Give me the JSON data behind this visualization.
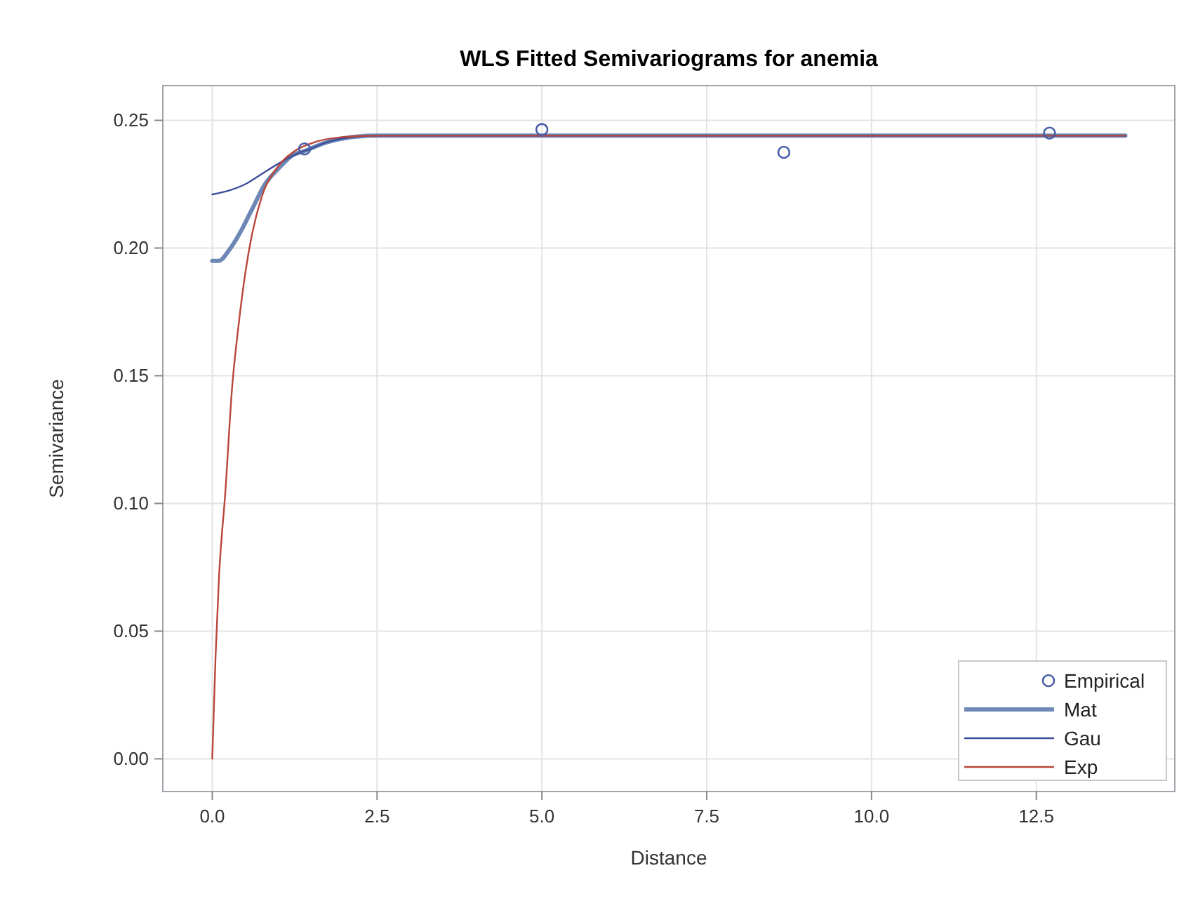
{
  "chart_data": {
    "type": "line",
    "title": "WLS Fitted Semivariograms for anemia",
    "xlabel": "Distance",
    "ylabel": "Semivariance",
    "xlim": [
      -0.75,
      14.6
    ],
    "ylim": [
      -0.0128,
      0.2636
    ],
    "xticks": [
      {
        "value": 0,
        "label": "0.0"
      },
      2.5,
      {
        "value": 5,
        "label": "5.0"
      },
      7.5,
      {
        "value": 10,
        "label": "10.0"
      },
      12.5
    ],
    "yticks": [
      {
        "value": 0,
        "label": "0.00"
      },
      0.05,
      {
        "value": 0.1,
        "label": "0.10"
      },
      0.15,
      {
        "value": 0.2,
        "label": "0.20"
      },
      0.25
    ],
    "grid": true,
    "legend": "bottom right",
    "series": [
      {
        "name": "Empirical",
        "type": "scatter",
        "marker": "circle",
        "color": "#4a5fa8",
        "x": [
          1.4,
          5.0,
          8.67,
          12.7
        ],
        "values": [
          0.2388,
          0.2464,
          0.2375,
          0.245
        ]
      },
      {
        "name": "Mat",
        "marker": "none",
        "color": "#6d88b5",
        "x": [
          0,
          0.1,
          0.25,
          0.4,
          0.6,
          0.8,
          1.0,
          1.2,
          1.4,
          1.75,
          2.0,
          2.5,
          13.85
        ],
        "values": [
          0.195,
          0.195,
          0.199,
          0.205,
          0.215,
          0.225,
          0.231,
          0.236,
          0.238,
          0.2415,
          0.243,
          0.244,
          0.244
        ]
      },
      {
        "name": "Gau",
        "marker": "none",
        "color": "#3c4e9a",
        "x": [
          0,
          0.25,
          0.5,
          0.75,
          1.0,
          1.25,
          1.5,
          1.75,
          2.0,
          2.5,
          13.85
        ],
        "values": [
          0.221,
          0.2225,
          0.225,
          0.229,
          0.233,
          0.2365,
          0.239,
          0.2415,
          0.243,
          0.244,
          0.244
        ]
      },
      {
        "name": "Exp",
        "marker": "none",
        "color": "#b9463a",
        "x": [
          0,
          0.05,
          0.1,
          0.2,
          0.3,
          0.4,
          0.5,
          0.6,
          0.75,
          1.0,
          1.25,
          1.5,
          2.0,
          2.5,
          13.85
        ],
        "values": [
          0,
          0.04,
          0.07,
          0.105,
          0.145,
          0.17,
          0.19,
          0.205,
          0.22,
          0.232,
          0.238,
          0.241,
          0.2435,
          0.244,
          0.244
        ]
      }
    ]
  }
}
